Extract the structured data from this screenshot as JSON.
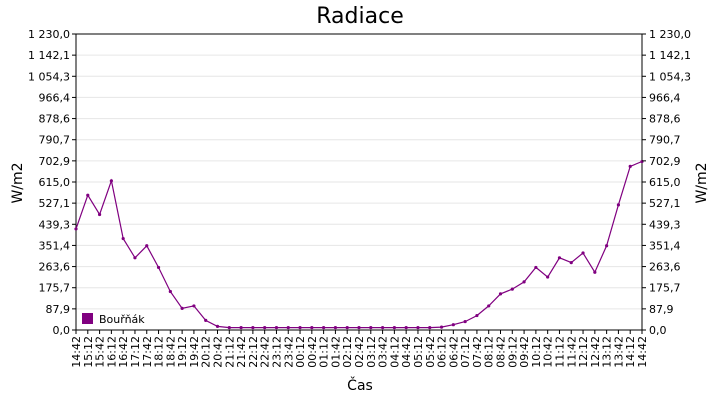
{
  "chart_data": {
    "type": "line",
    "title": "Radiace",
    "xlabel": "Čas",
    "ylabel": "W/m2",
    "ylabel_right": "W/m2",
    "ylim": [
      0,
      1230
    ],
    "y_tick_labels": [
      "0,0",
      "87,9",
      "175,7",
      "263,6",
      "351,4",
      "439,3",
      "527,1",
      "615,0",
      "702,9",
      "790,7",
      "878,6",
      "966,4",
      "1 054,3",
      "1 142,1",
      "1 230,0"
    ],
    "x_tick_labels": [
      "14:42",
      "15:12",
      "15:42",
      "16:12",
      "16:42",
      "17:12",
      "17:42",
      "18:12",
      "18:42",
      "19:12",
      "19:42",
      "20:12",
      "20:42",
      "21:12",
      "21:42",
      "22:12",
      "22:42",
      "23:12",
      "23:42",
      "00:12",
      "00:42",
      "01:12",
      "01:42",
      "02:12",
      "02:42",
      "03:12",
      "03:42",
      "04:12",
      "04:42",
      "05:12",
      "05:42",
      "06:12",
      "06:42",
      "07:12",
      "07:42",
      "08:12",
      "08:42",
      "09:12",
      "09:42",
      "10:12",
      "10:42",
      "11:12",
      "11:42",
      "12:12",
      "12:42",
      "13:12",
      "13:42",
      "14:12",
      "14:42"
    ],
    "grid": true,
    "legend_position": "bottom-left",
    "series": [
      {
        "name": "Bouřňák",
        "color": "#800080",
        "sample_interval_minutes": 30,
        "x": [
          "14:42",
          "15:12",
          "15:42",
          "16:12",
          "16:42",
          "17:12",
          "17:42",
          "18:12",
          "18:42",
          "19:12",
          "19:42",
          "20:12",
          "20:42",
          "21:12",
          "21:42",
          "22:12",
          "22:42",
          "23:12",
          "23:42",
          "00:12",
          "00:42",
          "01:12",
          "01:42",
          "02:12",
          "02:42",
          "03:12",
          "03:42",
          "04:12",
          "04:42",
          "05:12",
          "05:42",
          "06:12",
          "06:42",
          "07:12",
          "07:42",
          "08:12",
          "08:42",
          "09:12",
          "09:42",
          "10:12",
          "10:42",
          "11:12",
          "11:42",
          "12:12",
          "12:42",
          "13:12",
          "13:42",
          "14:12",
          "14:42"
        ],
        "values": [
          420,
          560,
          480,
          620,
          380,
          300,
          350,
          260,
          160,
          90,
          100,
          40,
          15,
          10,
          10,
          10,
          10,
          10,
          10,
          10,
          10,
          10,
          10,
          10,
          10,
          10,
          10,
          10,
          10,
          10,
          10,
          12,
          22,
          35,
          60,
          100,
          150,
          170,
          200,
          260,
          220,
          300,
          280,
          320,
          240,
          350,
          520,
          680,
          700
        ]
      }
    ]
  }
}
